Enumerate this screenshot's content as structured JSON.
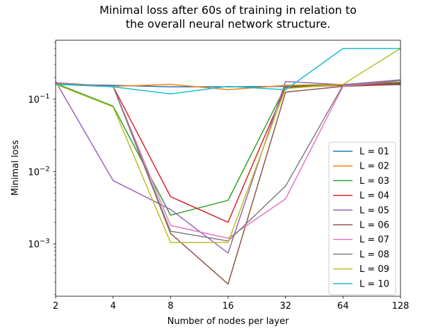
{
  "chart_data": {
    "type": "line",
    "title_lines": [
      "Minimal loss after 60s of training in relation to",
      "the overall neural network structure."
    ],
    "xlabel": "Number of nodes per layer",
    "ylabel": "Minimal loss",
    "x_scale": "log2",
    "y_scale": "log10",
    "x": [
      2,
      4,
      8,
      16,
      32,
      64,
      128
    ],
    "x_tick_labels": [
      "2",
      "4",
      "8",
      "16",
      "32",
      "64",
      "128"
    ],
    "xlim": [
      2,
      128
    ],
    "ylim": [
      0.00019,
      0.65
    ],
    "y_ticks": [
      {
        "value": 0.1,
        "base": "10",
        "exp": "−1"
      },
      {
        "value": 0.01,
        "base": "10",
        "exp": "−2"
      },
      {
        "value": 0.001,
        "base": "10",
        "exp": "−3"
      }
    ],
    "legend_position": "lower right",
    "series": [
      {
        "name": "L = 01",
        "color": "#1f77b4",
        "values": [
          0.16,
          0.155,
          0.148,
          0.148,
          0.15,
          0.155,
          0.158
        ]
      },
      {
        "name": "L = 02",
        "color": "#ff7f0e",
        "values": [
          0.162,
          0.15,
          0.16,
          0.135,
          0.155,
          0.16,
          0.17
        ]
      },
      {
        "name": "L = 03",
        "color": "#2ca02c",
        "values": [
          0.165,
          0.08,
          0.0025,
          0.004,
          0.15,
          0.158,
          0.17
        ]
      },
      {
        "name": "L = 04",
        "color": "#d62728",
        "values": [
          0.163,
          0.15,
          0.0045,
          0.002,
          0.145,
          0.155,
          0.165
        ]
      },
      {
        "name": "L = 05",
        "color": "#9467bd",
        "values": [
          0.175,
          0.0075,
          0.003,
          0.00075,
          0.175,
          0.158,
          0.185
        ]
      },
      {
        "name": "L = 06",
        "color": "#8c564b",
        "values": [
          0.168,
          0.15,
          0.0014,
          0.00028,
          0.125,
          0.15,
          0.16
        ]
      },
      {
        "name": "L = 07",
        "color": "#e377c2",
        "values": [
          0.165,
          0.15,
          0.0018,
          0.0012,
          0.0042,
          0.15,
          0.18
        ]
      },
      {
        "name": "L = 08",
        "color": "#7f7f7f",
        "values": [
          0.162,
          0.15,
          0.0015,
          0.0011,
          0.0063,
          0.155,
          0.18
        ]
      },
      {
        "name": "L = 09",
        "color": "#bcbd22",
        "values": [
          0.16,
          0.078,
          0.00105,
          0.00105,
          0.14,
          0.16,
          0.5
        ]
      },
      {
        "name": "L = 10",
        "color": "#17becf",
        "values": [
          0.16,
          0.148,
          0.118,
          0.15,
          0.135,
          0.5,
          0.5
        ]
      }
    ]
  }
}
